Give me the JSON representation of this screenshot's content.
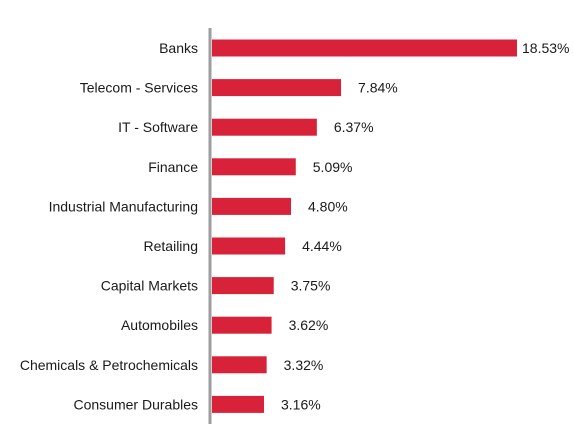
{
  "colors": {
    "bar": "#d7223a",
    "axis": "#9e9e9e",
    "text": "#1a1a1a"
  },
  "chart_data": {
    "type": "bar",
    "orientation": "horizontal",
    "title": "",
    "xlabel": "",
    "ylabel": "",
    "grid": false,
    "legend": "none",
    "xlim": [
      0,
      18.53
    ],
    "categories": [
      "Banks",
      "Telecom - Services",
      "IT - Software",
      "Finance",
      "Industrial Manufacturing",
      "Retailing",
      "Capital Markets",
      "Automobiles",
      "Chemicals & Petrochemicals",
      "Consumer Durables"
    ],
    "values": [
      18.53,
      7.84,
      6.37,
      5.09,
      4.8,
      4.44,
      3.75,
      3.62,
      3.32,
      3.16
    ],
    "value_labels": [
      "18.53%",
      "7.84%",
      "6.37%",
      "5.09%",
      "4.80%",
      "4.44%",
      "3.75%",
      "3.62%",
      "3.32%",
      "3.16%"
    ]
  }
}
